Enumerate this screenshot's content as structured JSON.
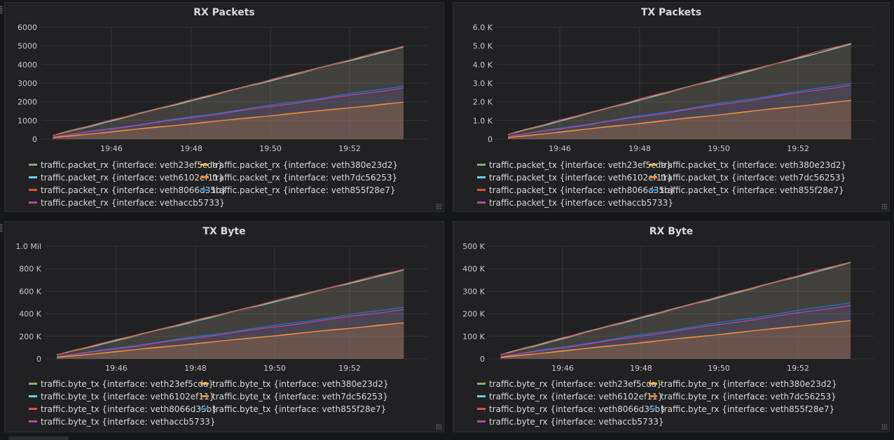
{
  "colors": {
    "veth23ef5cda": "#7eb26d",
    "veth380e23d2": "#eab839",
    "veth6102ef11": "#6ed0e0",
    "veth7dc56253": "#ef843c",
    "veth8066d35b": "#e24d42",
    "veth855f28e7": "#1f78c1",
    "vethaccb5733": "#ba43a9"
  },
  "chart_data": [
    {
      "type": "area",
      "title": "RX Packets",
      "x_ticks": [
        "19:46",
        "19:48",
        "19:50",
        "19:52"
      ],
      "y_ticks": [
        "0",
        "1000",
        "2000",
        "3000",
        "4000",
        "5000",
        "6000"
      ],
      "ylim": [
        0,
        6000
      ],
      "series": [
        {
          "name": "traffic.packet_rx {interface: veth23ef5cda}",
          "color_key": "veth23ef5cda",
          "start": 200,
          "end": 4950
        },
        {
          "name": "traffic.packet_rx {interface: veth380e23d2}",
          "color_key": "veth380e23d2",
          "start": 80,
          "end": 1980
        },
        {
          "name": "traffic.packet_rx {interface: veth6102ef11}",
          "color_key": "veth6102ef11",
          "start": 200,
          "end": 4950
        },
        {
          "name": "traffic.packet_rx {interface: veth7dc56253}",
          "color_key": "veth7dc56253",
          "start": 80,
          "end": 1980
        },
        {
          "name": "traffic.packet_rx {interface: veth8066d35b}",
          "color_key": "veth8066d35b",
          "start": 210,
          "end": 4980
        },
        {
          "name": "traffic.packet_rx {interface: veth855f28e7}",
          "color_key": "veth855f28e7",
          "start": 120,
          "end": 2850
        },
        {
          "name": "traffic.packet_rx {interface: vethaccb5733}",
          "color_key": "vethaccb5733",
          "start": 110,
          "end": 2750
        }
      ]
    },
    {
      "type": "area",
      "title": "TX Packets",
      "x_ticks": [
        "19:46",
        "19:48",
        "19:50",
        "19:52"
      ],
      "y_ticks": [
        "0",
        "1.0 K",
        "2.0 K",
        "3.0 K",
        "4.0 K",
        "5.0 K",
        "6.0 K"
      ],
      "ylim": [
        0,
        6000
      ],
      "series": [
        {
          "name": "traffic.packet_tx {interface: veth23ef5cda}",
          "color_key": "veth23ef5cda",
          "start": 250,
          "end": 5100
        },
        {
          "name": "traffic.packet_tx {interface: veth380e23d2}",
          "color_key": "veth380e23d2",
          "start": 80,
          "end": 2080
        },
        {
          "name": "traffic.packet_tx {interface: veth6102ef11}",
          "color_key": "veth6102ef11",
          "start": 250,
          "end": 5100
        },
        {
          "name": "traffic.packet_tx {interface: veth7dc56253}",
          "color_key": "veth7dc56253",
          "start": 80,
          "end": 2080
        },
        {
          "name": "traffic.packet_tx {interface: veth8066d35b}",
          "color_key": "veth8066d35b",
          "start": 260,
          "end": 5150
        },
        {
          "name": "traffic.packet_tx {interface: veth855f28e7}",
          "color_key": "veth855f28e7",
          "start": 150,
          "end": 3000
        },
        {
          "name": "traffic.packet_tx {interface: vethaccb5733}",
          "color_key": "vethaccb5733",
          "start": 140,
          "end": 2900
        }
      ]
    },
    {
      "type": "area",
      "title": "TX Byte",
      "x_ticks": [
        "19:46",
        "19:48",
        "19:50",
        "19:52"
      ],
      "y_ticks": [
        "0",
        "200 K",
        "400 K",
        "600 K",
        "800 K",
        "1.0 Mil"
      ],
      "ylim": [
        0,
        1000000
      ],
      "series": [
        {
          "name": "traffic.byte_tx {interface: veth23ef5cda}",
          "color_key": "veth23ef5cda",
          "start": 35000,
          "end": 790000
        },
        {
          "name": "traffic.byte_tx {interface: veth380e23d2}",
          "color_key": "veth380e23d2",
          "start": 12000,
          "end": 320000
        },
        {
          "name": "traffic.byte_tx {interface: veth6102ef11}",
          "color_key": "veth6102ef11",
          "start": 35000,
          "end": 790000
        },
        {
          "name": "traffic.byte_tx {interface: veth7dc56253}",
          "color_key": "veth7dc56253",
          "start": 12000,
          "end": 320000
        },
        {
          "name": "traffic.byte_tx {interface: veth8066d35b}",
          "color_key": "veth8066d35b",
          "start": 38000,
          "end": 795000
        },
        {
          "name": "traffic.byte_tx {interface: veth855f28e7}",
          "color_key": "veth855f28e7",
          "start": 20000,
          "end": 460000
        },
        {
          "name": "traffic.byte_tx {interface: vethaccb5733}",
          "color_key": "vethaccb5733",
          "start": 18000,
          "end": 440000
        }
      ]
    },
    {
      "type": "area",
      "title": "RX Byte",
      "x_ticks": [
        "19:46",
        "19:48",
        "19:50",
        "19:52"
      ],
      "y_ticks": [
        "0",
        "100 K",
        "200 K",
        "300 K",
        "400 K",
        "500 K"
      ],
      "ylim": [
        0,
        500000
      ],
      "series": [
        {
          "name": "traffic.byte_rx {interface: veth23ef5cda}",
          "color_key": "veth23ef5cda",
          "start": 18000,
          "end": 428000
        },
        {
          "name": "traffic.byte_rx {interface: veth380e23d2}",
          "color_key": "veth380e23d2",
          "start": 6000,
          "end": 170000
        },
        {
          "name": "traffic.byte_rx {interface: veth6102ef11}",
          "color_key": "veth6102ef11",
          "start": 18000,
          "end": 428000
        },
        {
          "name": "traffic.byte_rx {interface: veth7dc56253}",
          "color_key": "veth7dc56253",
          "start": 6000,
          "end": 170000
        },
        {
          "name": "traffic.byte_rx {interface: veth8066d35b}",
          "color_key": "veth8066d35b",
          "start": 19000,
          "end": 430000
        },
        {
          "name": "traffic.byte_rx {interface: veth855f28e7}",
          "color_key": "veth855f28e7",
          "start": 10000,
          "end": 250000
        },
        {
          "name": "traffic.byte_rx {interface: vethaccb5733}",
          "color_key": "vethaccb5733",
          "start": 9000,
          "end": 238000
        }
      ]
    }
  ]
}
